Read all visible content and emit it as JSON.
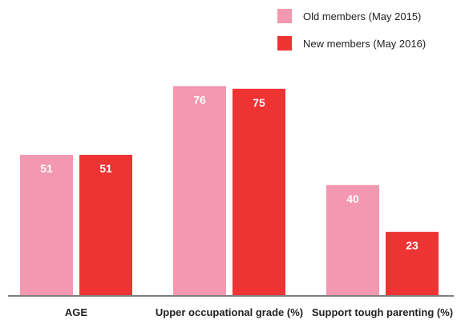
{
  "chart_data": {
    "type": "bar",
    "categories": [
      "AGE",
      "Upper occupational grade (%)",
      "Support tough parenting (%)"
    ],
    "series": [
      {
        "name": "Old members (May 2015)",
        "values": [
          51,
          76,
          40
        ],
        "color": "#f497b0"
      },
      {
        "name": "New members (May 2016)",
        "values": [
          51,
          75,
          23
        ],
        "color": "#ee3333"
      }
    ],
    "legend_position": "top-right",
    "grid": false,
    "baseline": true,
    "ylim": [
      0,
      100
    ]
  }
}
